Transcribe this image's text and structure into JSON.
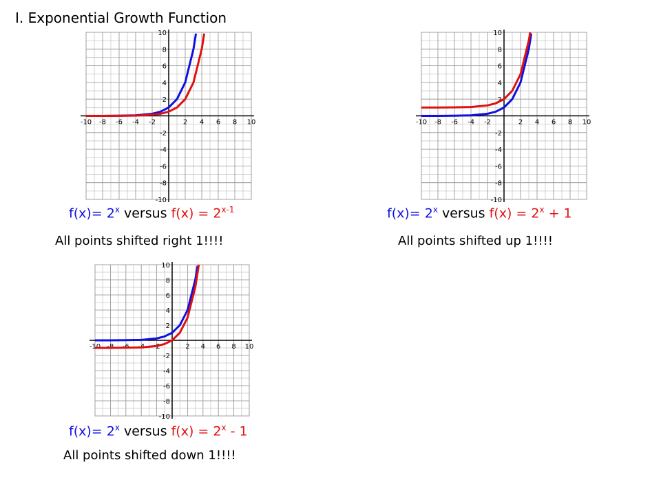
{
  "header": {
    "title": "I.  Exponential  Growth Function"
  },
  "chart_data": [
    {
      "type": "line",
      "xlim": [
        -10,
        10
      ],
      "ylim": [
        -10,
        10
      ],
      "xticks": [
        -10,
        -8,
        -6,
        -4,
        -2,
        2,
        4,
        6,
        8,
        10
      ],
      "yticks": [
        -10,
        -8,
        -6,
        -4,
        -2,
        2,
        4,
        6,
        8,
        10
      ],
      "grid": true,
      "series": [
        {
          "color": "#1010e0",
          "x": [
            -10,
            -8,
            -6,
            -4,
            -2,
            -1,
            0,
            1,
            2,
            3,
            3.3
          ],
          "values": [
            0,
            0,
            0.02,
            0.06,
            0.25,
            0.5,
            1,
            2,
            4,
            8,
            9.85
          ]
        },
        {
          "color": "#e01010",
          "x": [
            -10,
            -8,
            -6,
            -4,
            -2,
            -1,
            0,
            1,
            2,
            3,
            4,
            4.3
          ],
          "values": [
            0,
            0,
            0.01,
            0.03,
            0.13,
            0.25,
            0.5,
            1,
            2,
            4,
            8,
            9.85
          ]
        }
      ]
    },
    {
      "type": "line",
      "xlim": [
        -10,
        10
      ],
      "ylim": [
        -10,
        10
      ],
      "xticks": [
        -10,
        -8,
        -6,
        -4,
        -2,
        2,
        4,
        6,
        8,
        10
      ],
      "yticks": [
        -10,
        -8,
        -6,
        -4,
        -2,
        2,
        4,
        6,
        8,
        10
      ],
      "grid": true,
      "series": [
        {
          "color": "#1010e0",
          "x": [
            -10,
            -8,
            -6,
            -4,
            -2,
            -1,
            0,
            1,
            2,
            3,
            3.3
          ],
          "values": [
            0,
            0,
            0.02,
            0.06,
            0.25,
            0.5,
            1,
            2,
            4,
            8,
            9.85
          ]
        },
        {
          "color": "#e01010",
          "x": [
            -10,
            -8,
            -6,
            -4,
            -2,
            -1,
            0,
            1,
            2,
            3,
            3.17
          ],
          "values": [
            1,
            1,
            1.02,
            1.06,
            1.25,
            1.5,
            2,
            3,
            5,
            9,
            10
          ]
        }
      ]
    },
    {
      "type": "line",
      "xlim": [
        -10,
        10
      ],
      "ylim": [
        -10,
        10
      ],
      "xticks": [
        -10,
        -8,
        -6,
        -4,
        -2,
        2,
        4,
        6,
        8,
        10
      ],
      "yticks": [
        -10,
        -8,
        -6,
        -4,
        -2,
        2,
        4,
        6,
        8,
        10
      ],
      "grid": true,
      "series": [
        {
          "color": "#1010e0",
          "x": [
            -10,
            -8,
            -6,
            -4,
            -2,
            -1,
            0,
            1,
            2,
            3,
            3.3
          ],
          "values": [
            0,
            0,
            0.02,
            0.06,
            0.25,
            0.5,
            1,
            2,
            4,
            8,
            9.85
          ]
        },
        {
          "color": "#e01010",
          "x": [
            -10,
            -8,
            -6,
            -4,
            -2,
            -1,
            0,
            1,
            2,
            3,
            3.46
          ],
          "values": [
            -1,
            -1,
            -0.98,
            -0.94,
            -0.75,
            -0.5,
            0,
            1,
            3,
            7,
            10
          ]
        }
      ]
    }
  ],
  "captions": [
    {
      "formula": [
        {
          "text": "f(x)= 2",
          "color": "#1010e0"
        },
        {
          "text": "x",
          "color": "#1010e0",
          "sup": true
        },
        {
          "text": " versus ",
          "color": "#000000"
        },
        {
          "text": "f(x) = 2",
          "color": "#e01010"
        },
        {
          "text": "x-1",
          "color": "#e01010",
          "sup": true
        }
      ],
      "note": "All points shifted right 1!!!!"
    },
    {
      "formula": [
        {
          "text": "f(x)= 2",
          "color": "#1010e0"
        },
        {
          "text": "x",
          "color": "#1010e0",
          "sup": true
        },
        {
          "text": " versus ",
          "color": "#000000"
        },
        {
          "text": "f(x) = 2",
          "color": "#e01010"
        },
        {
          "text": "x",
          "color": "#e01010",
          "sup": true
        },
        {
          "text": " + 1",
          "color": "#e01010"
        }
      ],
      "note": "All points shifted up 1!!!!"
    },
    {
      "formula": [
        {
          "text": "f(x)= 2",
          "color": "#1010e0"
        },
        {
          "text": "x",
          "color": "#1010e0",
          "sup": true
        },
        {
          "text": " versus ",
          "color": "#000000"
        },
        {
          "text": "f(x) = 2",
          "color": "#e01010"
        },
        {
          "text": "x",
          "color": "#e01010",
          "sup": true
        },
        {
          "text": " - 1",
          "color": "#e01010"
        }
      ],
      "note": "All points shifted down 1!!!!"
    }
  ]
}
